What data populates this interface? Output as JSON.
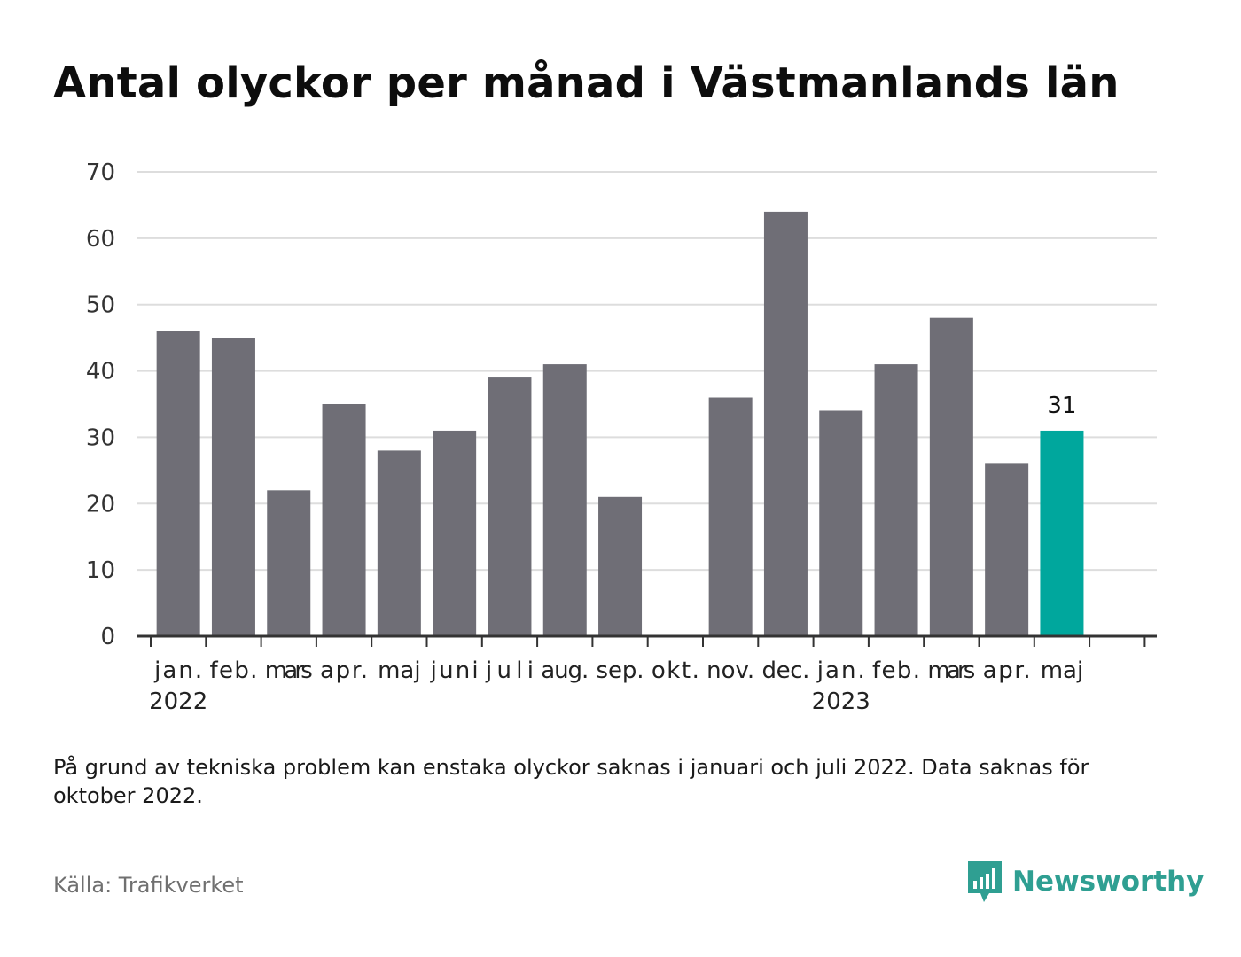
{
  "title": "Antal olyckor per månad i Västmanlands län",
  "note": "På grund av tekniska problem kan enstaka olyckor saknas i januari och juli 2022. Data saknas för oktober 2022.",
  "source": "Källa: Trafikverket",
  "brand": "Newsworthy",
  "colors": {
    "bar": "#6f6e76",
    "highlight": "#00a79d",
    "grid": "#dddddd",
    "axis": "#333333",
    "brand": "#2f9f92"
  },
  "chart_data": {
    "type": "bar",
    "categories": [
      "jan.",
      "feb.",
      "mars",
      "apr.",
      "maj",
      "juni",
      "juli",
      "aug.",
      "sep.",
      "okt.",
      "nov.",
      "dec.",
      "jan.",
      "feb.",
      "mars",
      "apr.",
      "maj"
    ],
    "year_labels": [
      {
        "index": 0,
        "label": "2022"
      },
      {
        "index": 12,
        "label": "2023"
      }
    ],
    "values": [
      46,
      45,
      22,
      35,
      28,
      31,
      39,
      41,
      21,
      null,
      36,
      64,
      34,
      41,
      48,
      26,
      31
    ],
    "highlight_index": 16,
    "data_labels": [
      {
        "index": 16,
        "label": "31"
      }
    ],
    "yticks": [
      0,
      10,
      20,
      30,
      40,
      50,
      60,
      70
    ],
    "ylim": [
      0,
      70
    ],
    "grid": true
  }
}
